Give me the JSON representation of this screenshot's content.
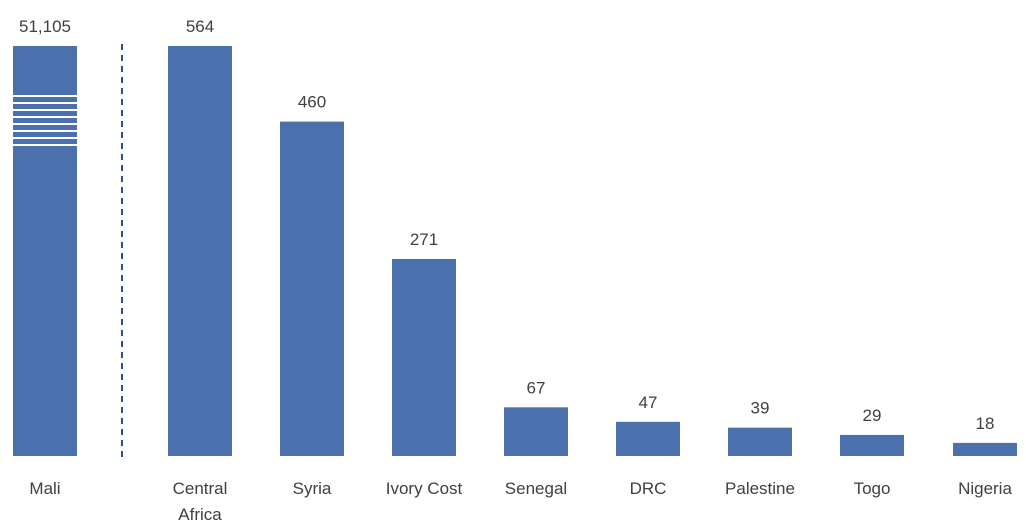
{
  "chart_data": {
    "type": "bar",
    "categories": [
      "Mali",
      "Central Africa",
      "Syria",
      "Ivory Cost",
      "Senegal",
      "DRC",
      "Palestine",
      "Togo",
      "Nigeria"
    ],
    "values": [
      51105,
      564,
      460,
      271,
      67,
      47,
      39,
      29,
      18
    ],
    "value_labels": [
      "51,105",
      "564",
      "460",
      "271",
      "67",
      "47",
      "39",
      "29",
      "18"
    ],
    "broken_axis_category": "Mali",
    "ylim": [
      0,
      564
    ],
    "color": "#4a70ad",
    "title": "",
    "xlabel": "",
    "ylabel": "",
    "grid": false,
    "legend": "none"
  }
}
